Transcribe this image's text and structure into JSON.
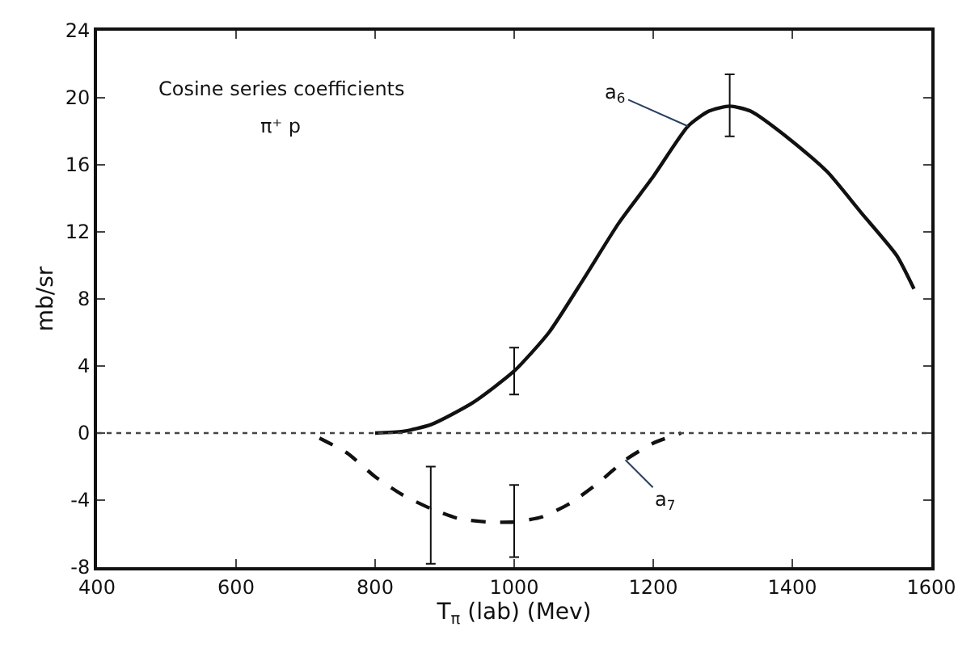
{
  "chart_data": {
    "type": "line",
    "annotations": [
      "Cosine series coefficients",
      "π⁺ p"
    ],
    "xlabel": "T$_{π}$ (lab) (Mev)",
    "ylabel": "mb/sr",
    "series": [
      {
        "name": "a$_{6}$",
        "color": "#111111",
        "line_style": "solid",
        "x": [
          800,
          840,
          880,
          940,
          1000,
          1050,
          1100,
          1150,
          1200,
          1250,
          1280,
          1310,
          1340,
          1400,
          1450,
          1500,
          1550,
          1575
        ],
        "values": [
          0,
          0.1,
          0.5,
          1.8,
          3.7,
          6,
          9.2,
          12.5,
          15.3,
          18.3,
          19.2,
          19.5,
          19.2,
          17.4,
          15.6,
          13.1,
          10.6,
          8.6
        ],
        "errors": [
          null,
          null,
          null,
          null,
          [
            2.3,
            5.1
          ],
          null,
          null,
          null,
          null,
          null,
          null,
          [
            17.7,
            21.4
          ],
          null,
          null,
          null,
          null,
          null,
          null
        ]
      },
      {
        "name": "a$_{7}$",
        "color": "#111111",
        "line_style": "dashed",
        "x": [
          720,
          760,
          800,
          840,
          880,
          920,
          960,
          1000,
          1040,
          1080,
          1120,
          1160,
          1200,
          1240
        ],
        "values": [
          -0.3,
          -1.2,
          -2.6,
          -3.7,
          -4.5,
          -5.1,
          -5.3,
          -5.3,
          -5.0,
          -4.2,
          -3.0,
          -1.6,
          -0.6,
          0
        ],
        "errors": [
          null,
          null,
          null,
          null,
          [
            -7.8,
            -2.0
          ],
          null,
          null,
          [
            -7.4,
            -3.1
          ],
          null,
          null,
          null,
          null,
          null,
          null
        ]
      }
    ],
    "ref_lines": [
      {
        "axis": "y",
        "value": 0,
        "line_style": "dotted",
        "color": "#444444"
      }
    ],
    "xlim": [
      400,
      1600
    ],
    "xticks": [
      400,
      600,
      800,
      1000,
      1200,
      1400,
      1600
    ],
    "ylim": [
      -8,
      24
    ],
    "yticks": [
      -8,
      -4,
      0,
      4,
      8,
      12,
      16,
      20,
      24
    ],
    "legend": false,
    "marker": "none"
  }
}
